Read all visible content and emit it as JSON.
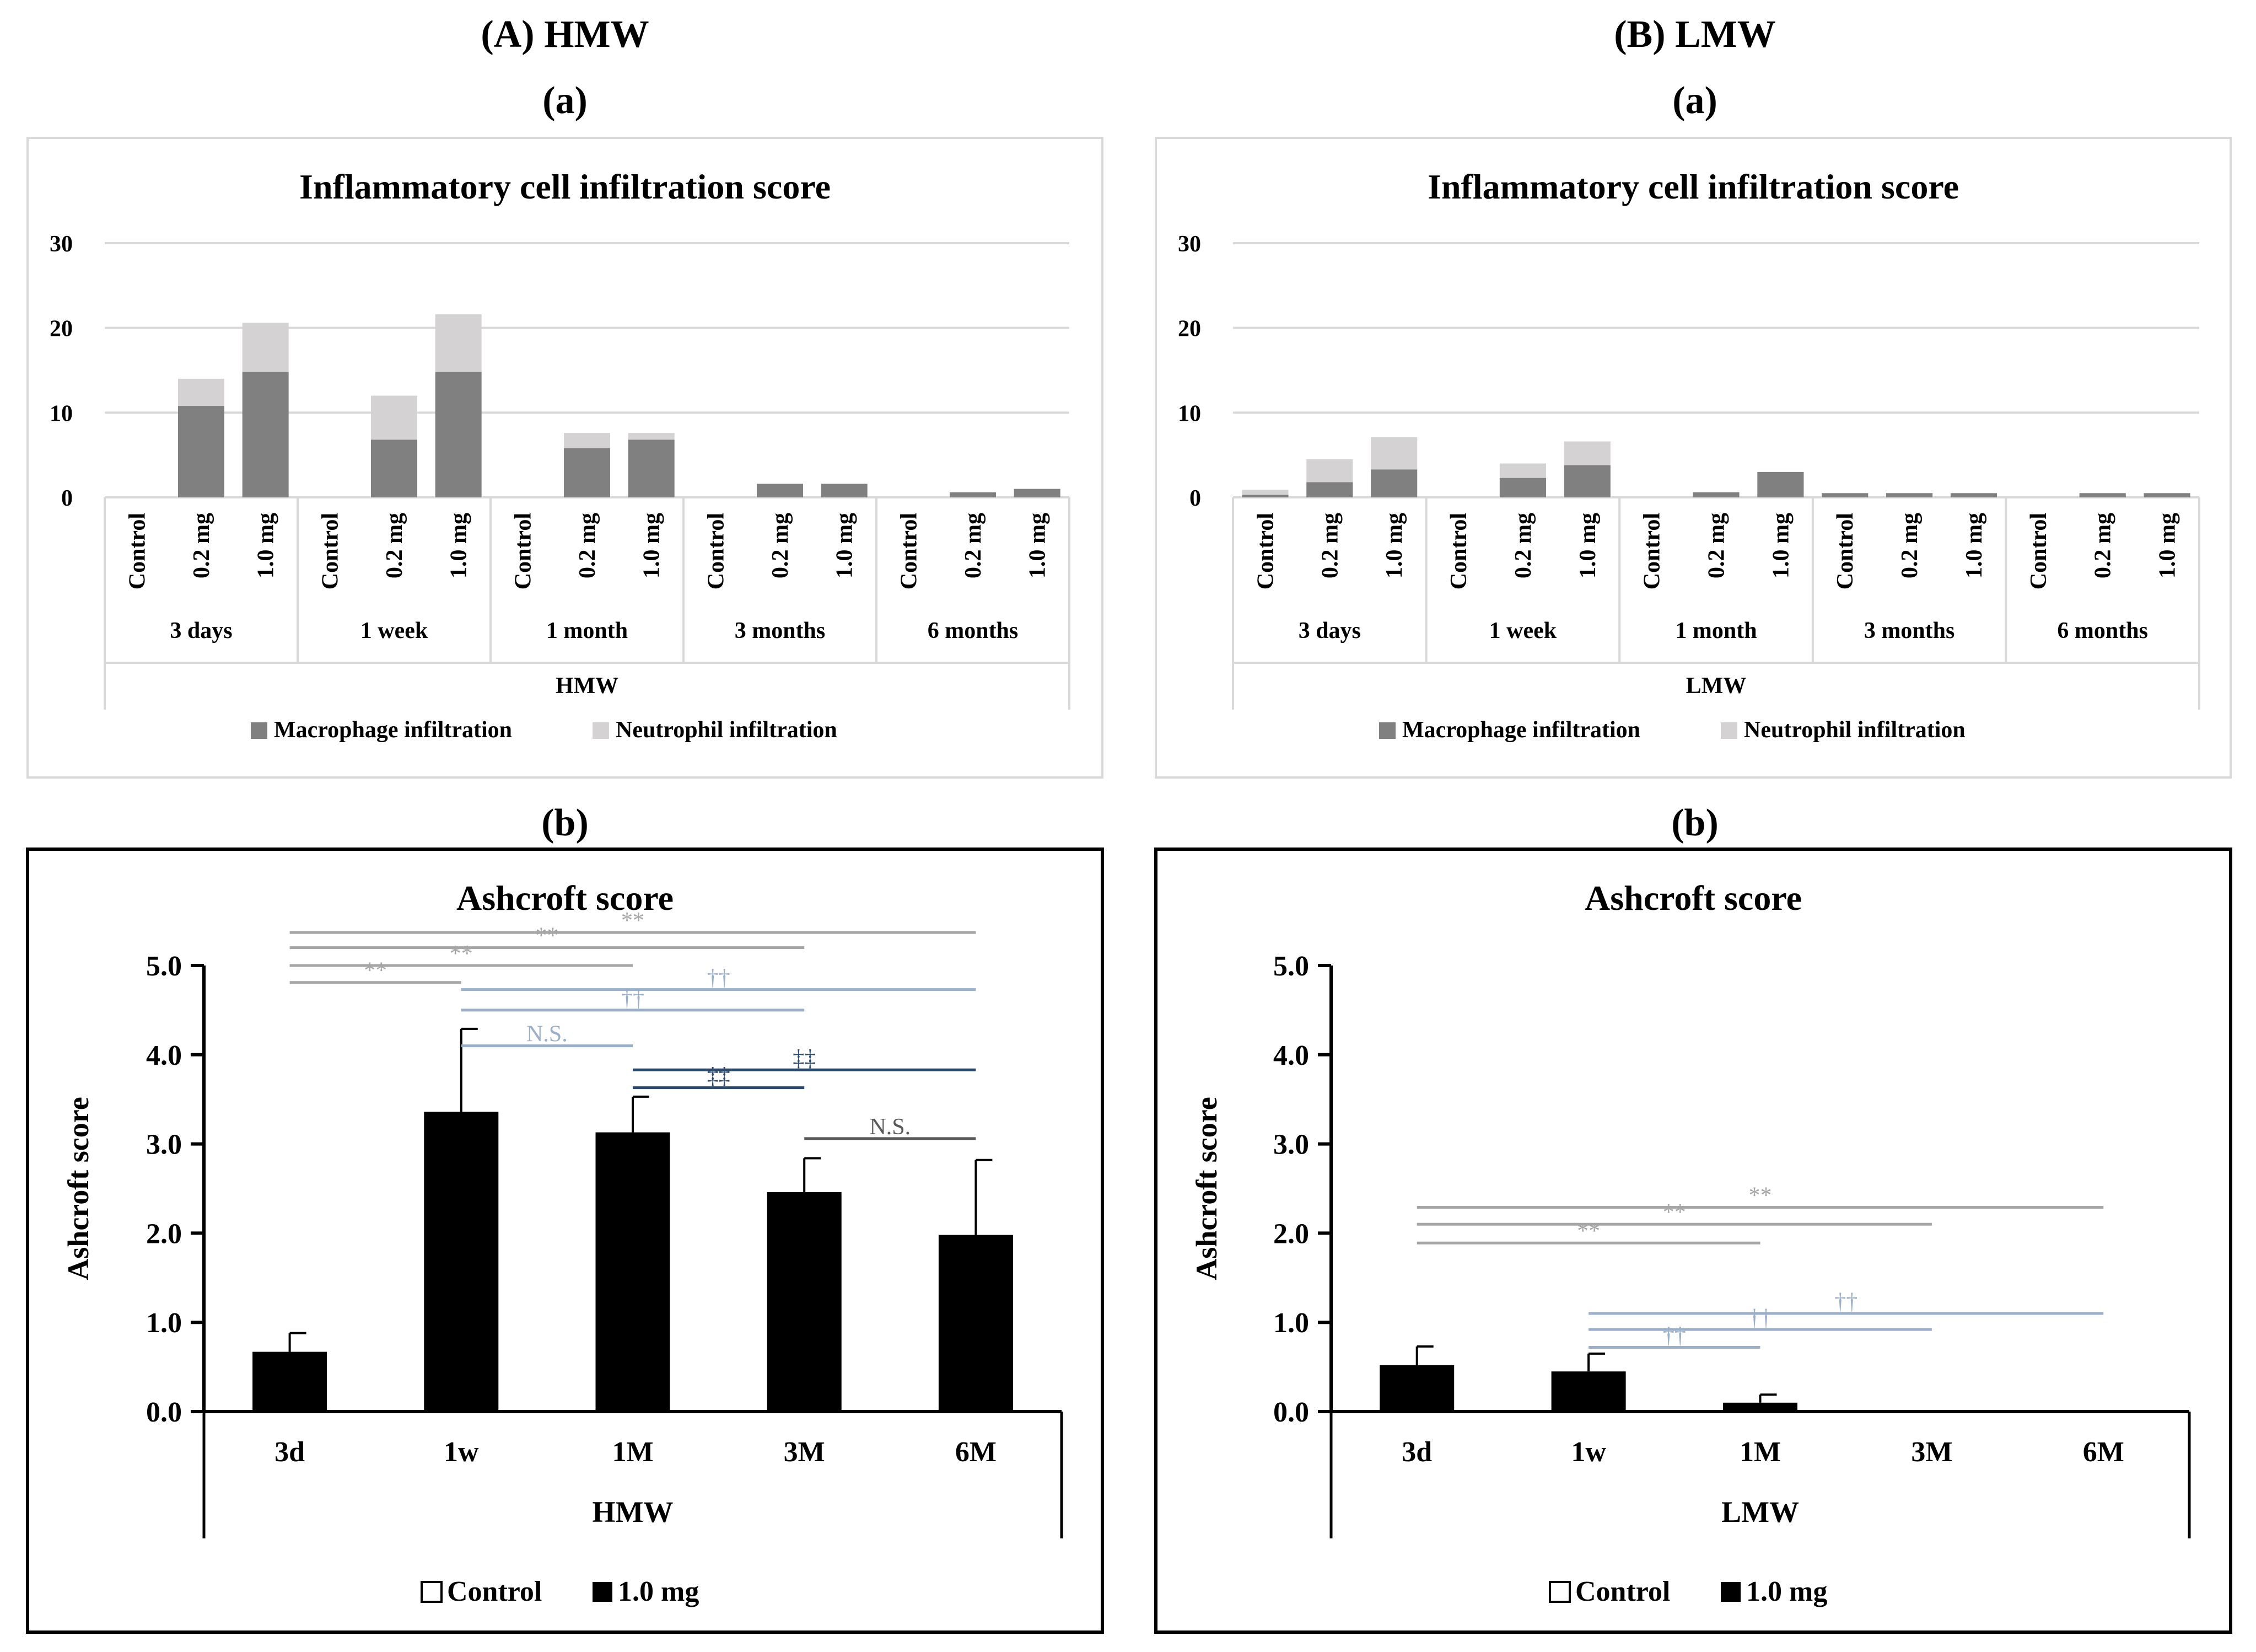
{
  "panels": {
    "A": {
      "label": "(A) HMW",
      "sub_a": "(a)",
      "sub_b": "(b)"
    },
    "B": {
      "label": "(B) LMW",
      "sub_a": "(a)",
      "sub_b": "(b)"
    }
  },
  "colors": {
    "macrophage": "#808080",
    "neutrophil": "#d4d2d3",
    "grid": "#d9d9d9",
    "frame_light": "#d9d9d9",
    "bar_black": "#000000",
    "sig_gray": "#a6a6a6",
    "sig_lightblue": "#9bb0c8",
    "sig_navy": "#2e4a6b",
    "sig_dark": "#595959"
  },
  "chart_data": [
    {
      "id": "A-a",
      "type": "bar",
      "stacked": true,
      "title": "Inflammatory  cell infiltration score",
      "yticks": [
        "0",
        "10",
        "20",
        "30"
      ],
      "ylim": [
        0,
        30
      ],
      "group_label": "HMW",
      "timepoints": [
        "3 days",
        "1 week",
        "1 month",
        "3 months",
        "6 months"
      ],
      "doses": [
        "Control",
        "0.2 mg",
        "1.0 mg"
      ],
      "series": [
        {
          "name": "Macrophage infiltration",
          "values": [
            0,
            10.8,
            14.8,
            0,
            6.8,
            14.8,
            0,
            5.8,
            6.8,
            0,
            1.6,
            1.6,
            0,
            0.6,
            1.0
          ]
        },
        {
          "name": "Neutrophil infiltration",
          "values": [
            0,
            3.2,
            5.8,
            0,
            5.2,
            6.8,
            0,
            1.8,
            0.8,
            0,
            0,
            0,
            0,
            0,
            0
          ]
        }
      ],
      "legend": [
        "Macrophage infiltration",
        "Neutrophil infiltration"
      ]
    },
    {
      "id": "B-a",
      "type": "bar",
      "stacked": true,
      "title": "Inflammatory  cell infiltration score",
      "yticks": [
        "0",
        "10",
        "20",
        "30"
      ],
      "ylim": [
        0,
        30
      ],
      "group_label": "LMW",
      "timepoints": [
        "3 days",
        "1 week",
        "1 month",
        "3 months",
        "6 months"
      ],
      "doses": [
        "Control",
        "0.2 mg",
        "1.0 mg"
      ],
      "series": [
        {
          "name": "Macrophage infiltration",
          "values": [
            0.3,
            1.8,
            3.3,
            0,
            2.3,
            3.8,
            0,
            0.6,
            3.0,
            0.5,
            0.5,
            0.5,
            0,
            0.5,
            0.5
          ]
        },
        {
          "name": "Neutrophil infiltration",
          "values": [
            0.6,
            2.7,
            3.8,
            0,
            1.7,
            2.8,
            0,
            0,
            0,
            0,
            0,
            0,
            0,
            0,
            0
          ]
        }
      ],
      "legend": [
        "Macrophage infiltration",
        "Neutrophil infiltration"
      ]
    },
    {
      "id": "A-b",
      "type": "bar",
      "title": "Ashcroft score",
      "ylabel": "Ashcroft score",
      "yticks": [
        "0.0",
        "1.0",
        "2.0",
        "3.0",
        "4.0",
        "5.0"
      ],
      "ylim": [
        0,
        5
      ],
      "group_label": "HMW",
      "categories": [
        "3d",
        "1w",
        "1M",
        "3M",
        "6M"
      ],
      "series": [
        {
          "name": "Control",
          "values": [
            0,
            0,
            0,
            0,
            0
          ],
          "errors": [
            0,
            0,
            0,
            0,
            0
          ]
        },
        {
          "name": "1.0 mg",
          "values": [
            0.67,
            3.36,
            3.13,
            2.46,
            1.98
          ],
          "errors": [
            0.21,
            0.93,
            0.4,
            0.38,
            0.84
          ]
        }
      ],
      "legend": [
        "Control",
        "1.0 mg"
      ],
      "significance": [
        {
          "from": 0,
          "to": 4,
          "y": 5.37,
          "label": "**",
          "color": "gray"
        },
        {
          "from": 0,
          "to": 3,
          "y": 5.2,
          "label": "**",
          "color": "gray"
        },
        {
          "from": 0,
          "to": 2,
          "y": 5.0,
          "label": "**",
          "color": "gray"
        },
        {
          "from": 0,
          "to": 1,
          "y": 4.81,
          "label": "**",
          "color": "gray"
        },
        {
          "from": 1,
          "to": 4,
          "y": 4.73,
          "label": "††",
          "color": "lightblue"
        },
        {
          "from": 1,
          "to": 3,
          "y": 4.5,
          "label": "††",
          "color": "lightblue"
        },
        {
          "from": 1,
          "to": 2,
          "y": 4.1,
          "label": "N.S.",
          "color": "lightblue"
        },
        {
          "from": 2,
          "to": 4,
          "y": 3.83,
          "label": "‡‡",
          "color": "navy"
        },
        {
          "from": 2,
          "to": 3,
          "y": 3.63,
          "label": "‡‡",
          "color": "navy"
        },
        {
          "from": 3,
          "to": 4,
          "y": 3.06,
          "label": "N.S.",
          "color": "dark"
        }
      ]
    },
    {
      "id": "B-b",
      "type": "bar",
      "title": "Ashcroft score",
      "ylabel": "Ashcroft score",
      "yticks": [
        "0.0",
        "1.0",
        "2.0",
        "3.0",
        "4.0",
        "5.0"
      ],
      "ylim": [
        0,
        5
      ],
      "group_label": "LMW",
      "categories": [
        "3d",
        "1w",
        "1M",
        "3M",
        "6M"
      ],
      "series": [
        {
          "name": "Control",
          "values": [
            0,
            0,
            0,
            0,
            0
          ],
          "errors": [
            0,
            0,
            0,
            0,
            0
          ]
        },
        {
          "name": "1.0 mg",
          "values": [
            0.52,
            0.45,
            0.1,
            0,
            0
          ],
          "errors": [
            0.21,
            0.2,
            0.09,
            0,
            0
          ]
        }
      ],
      "legend": [
        "Control",
        "1.0 mg"
      ],
      "significance": [
        {
          "from": 0,
          "to": 4,
          "y": 2.29,
          "label": "**",
          "color": "gray"
        },
        {
          "from": 0,
          "to": 3,
          "y": 2.1,
          "label": "**",
          "color": "gray"
        },
        {
          "from": 0,
          "to": 2,
          "y": 1.89,
          "label": "**",
          "color": "gray"
        },
        {
          "from": 1,
          "to": 4,
          "y": 1.1,
          "label": "††",
          "color": "lightblue"
        },
        {
          "from": 1,
          "to": 3,
          "y": 0.92,
          "label": "††",
          "color": "lightblue"
        },
        {
          "from": 1,
          "to": 2,
          "y": 0.72,
          "label": "††",
          "color": "lightblue"
        }
      ]
    }
  ]
}
